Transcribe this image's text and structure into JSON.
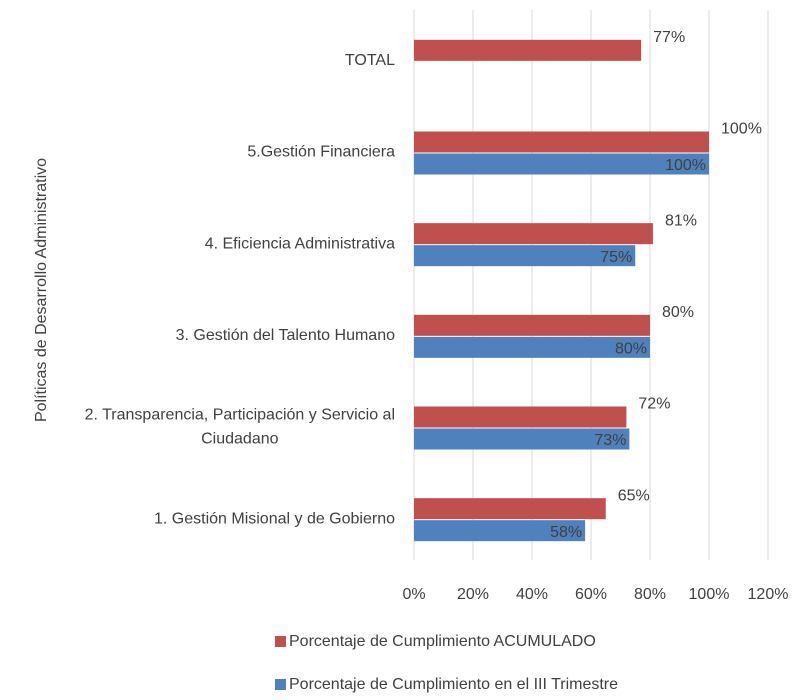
{
  "chart_data": {
    "type": "hbar",
    "y_axis_label": "Políticas de Desarrollo Administrativo",
    "categories": [
      "TOTAL",
      "5.Gestión Financiera",
      "4. Eficiencia Administrativa",
      "3. Gestión del Talento Humano",
      "2. Transparencia, Participación y Servicio al Ciudadano",
      "1. Gestión Misional y de Gobierno"
    ],
    "series": [
      {
        "name": "Porcentaje de Cumplimiento ACUMULADO",
        "color": "#c0504d",
        "values": [
          77,
          100,
          81,
          80,
          72,
          65
        ],
        "value_labels": [
          "77%",
          "100%",
          "81%",
          "80%",
          "72%",
          "65%"
        ]
      },
      {
        "name": "Porcentaje de Cumplimiento en el III Trimestre",
        "color": "#4f81bd",
        "values": [
          null,
          100,
          75,
          80,
          73,
          58
        ],
        "value_labels": [
          null,
          "100%",
          "75%",
          "80%",
          "73%",
          "58%"
        ]
      }
    ],
    "xlim": [
      0,
      120
    ],
    "xticks": [
      {
        "value": 0,
        "label": "0%"
      },
      {
        "value": 20,
        "label": "20%"
      },
      {
        "value": 40,
        "label": "40%"
      },
      {
        "value": 60,
        "label": "60%"
      },
      {
        "value": 80,
        "label": "80%"
      },
      {
        "value": 100,
        "label": "100%"
      },
      {
        "value": 120,
        "label": "120%"
      }
    ],
    "grid": true
  }
}
